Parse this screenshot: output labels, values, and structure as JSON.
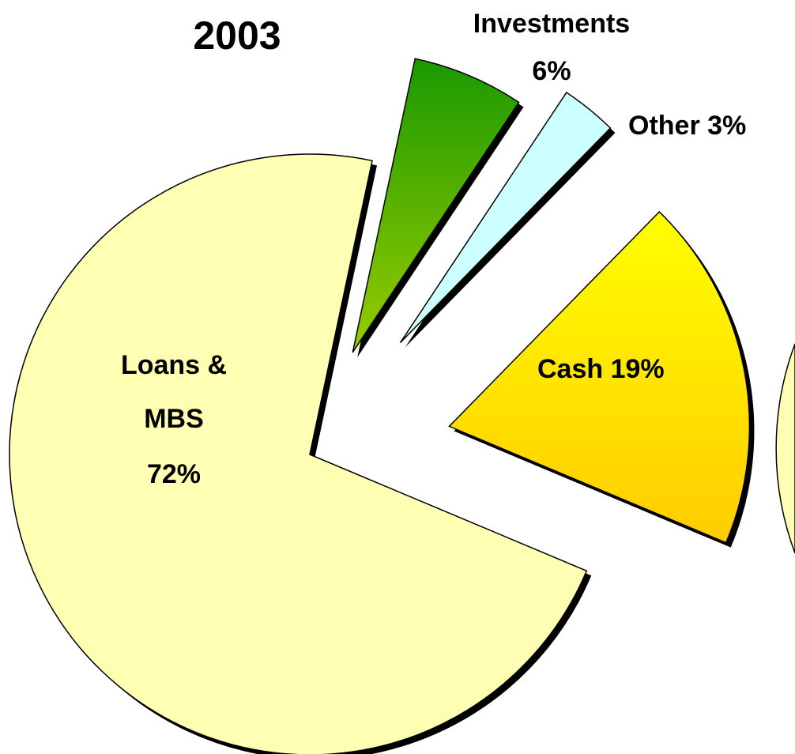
{
  "chart_data": {
    "type": "pie",
    "title": "2003",
    "categories": [
      "Loans & MBS",
      "Cash",
      "Other",
      "Investments"
    ],
    "values": [
      72,
      19,
      3,
      6
    ],
    "value_labels": [
      "72%",
      "19%",
      "3%",
      "6%"
    ],
    "colors": [
      "#ffffb3",
      "#ffd700",
      "#ccffff",
      "#4aa800"
    ]
  }
}
